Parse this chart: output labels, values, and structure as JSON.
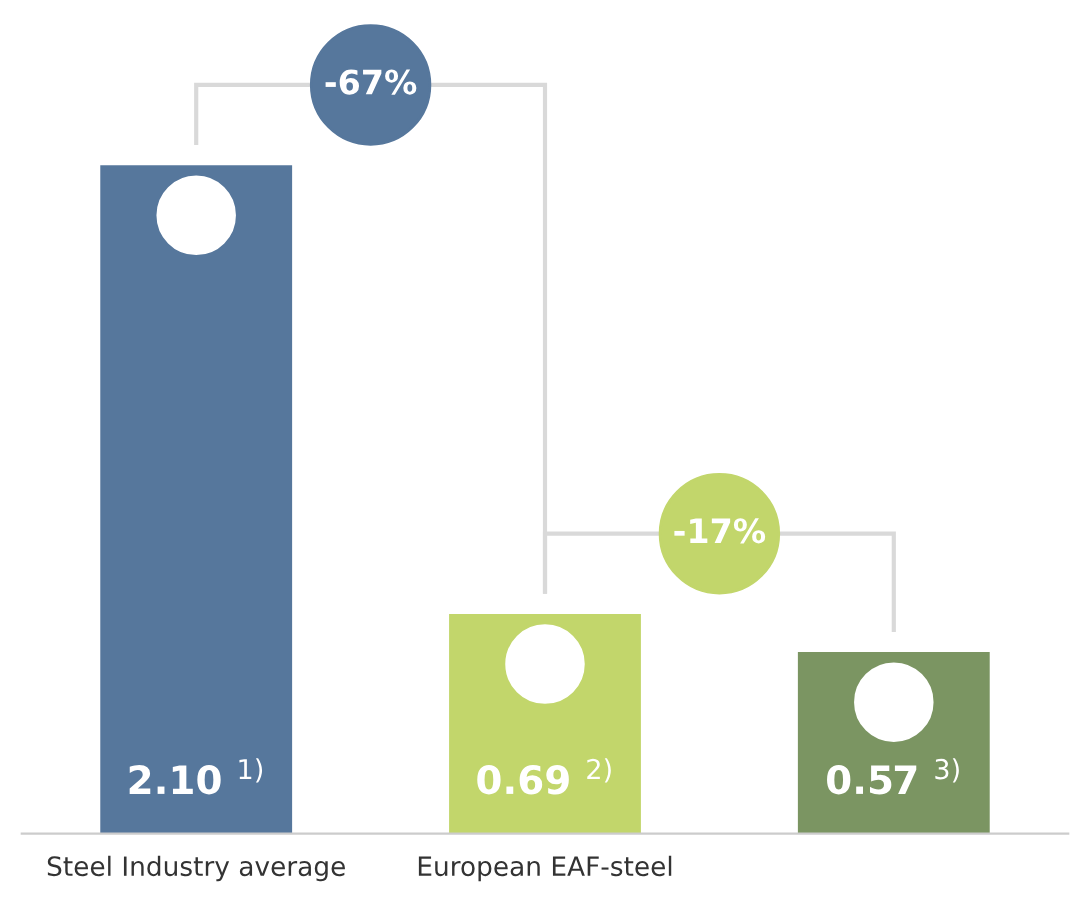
{
  "chart_data": {
    "type": "bar",
    "categories": [
      "Steel Industry average",
      "European EAF-steel",
      null
    ],
    "values": [
      2.1,
      0.69,
      0.57
    ],
    "colors": [
      "#56779c",
      "#c2d66b",
      "#7b9562"
    ],
    "value_labels": [
      "2.10 $^{1)}$",
      "0.69 $^{2)}$",
      "0.57 $^{3)}$"
    ],
    "annotations": [
      "-67%",
      "-17%"
    ],
    "grid": false,
    "legend": false
  }
}
